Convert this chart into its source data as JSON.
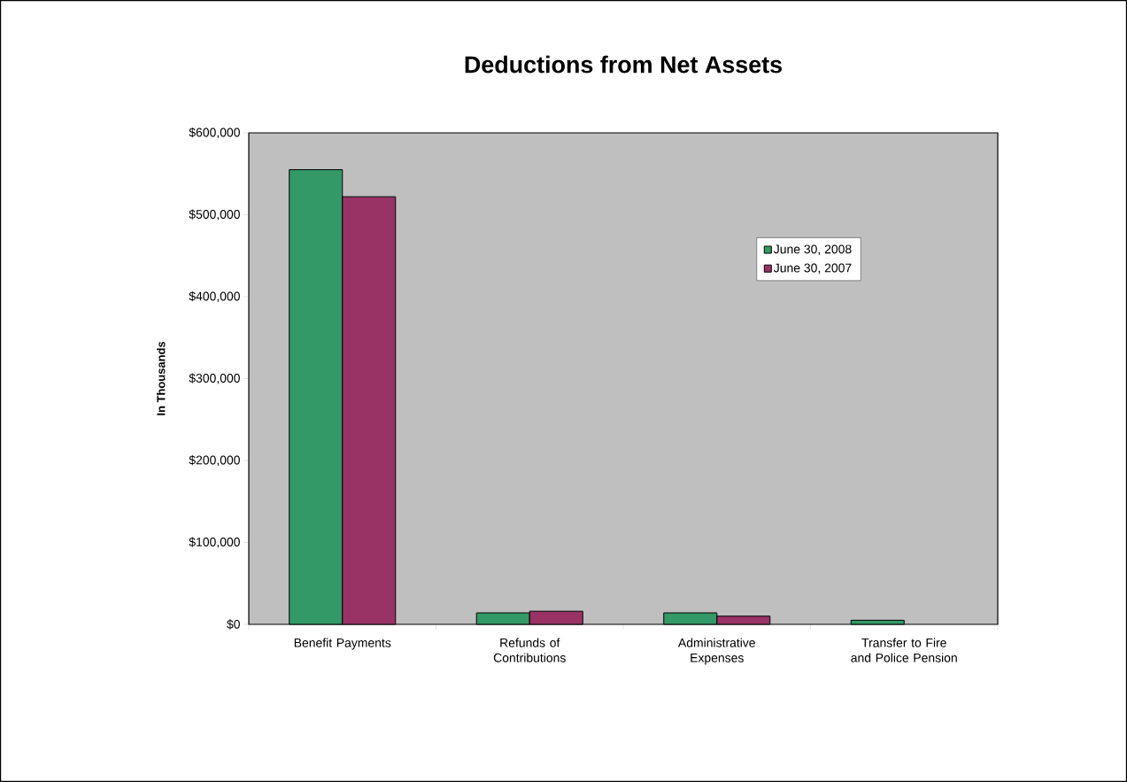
{
  "chart_data": {
    "type": "bar",
    "title": "Deductions from Net Assets",
    "ylabel": "In Thousands",
    "categories": [
      "Benefit Payments",
      "Refunds of Contributions",
      "Administrative Expenses",
      "Transfer to Fire and Police Pension"
    ],
    "series": [
      {
        "name": "June 30, 2008",
        "color": "#339966",
        "values": [
          555000,
          14000,
          14000,
          5000
        ]
      },
      {
        "name": "June 30, 2007",
        "color": "#993366",
        "values": [
          522000,
          16000,
          10000,
          null
        ]
      }
    ],
    "ylim": [
      0,
      600000
    ],
    "yticks": [
      {
        "value": 0,
        "label": "$0"
      },
      {
        "value": 100000,
        "label": "$100,000"
      },
      {
        "value": 200000,
        "label": "$200,000"
      },
      {
        "value": 300000,
        "label": "$300,000"
      },
      {
        "value": 400000,
        "label": "$400,000"
      },
      {
        "value": 500000,
        "label": "$500,000"
      },
      {
        "value": 600000,
        "label": "$600,000"
      }
    ],
    "grid": false,
    "legend": "top right"
  }
}
